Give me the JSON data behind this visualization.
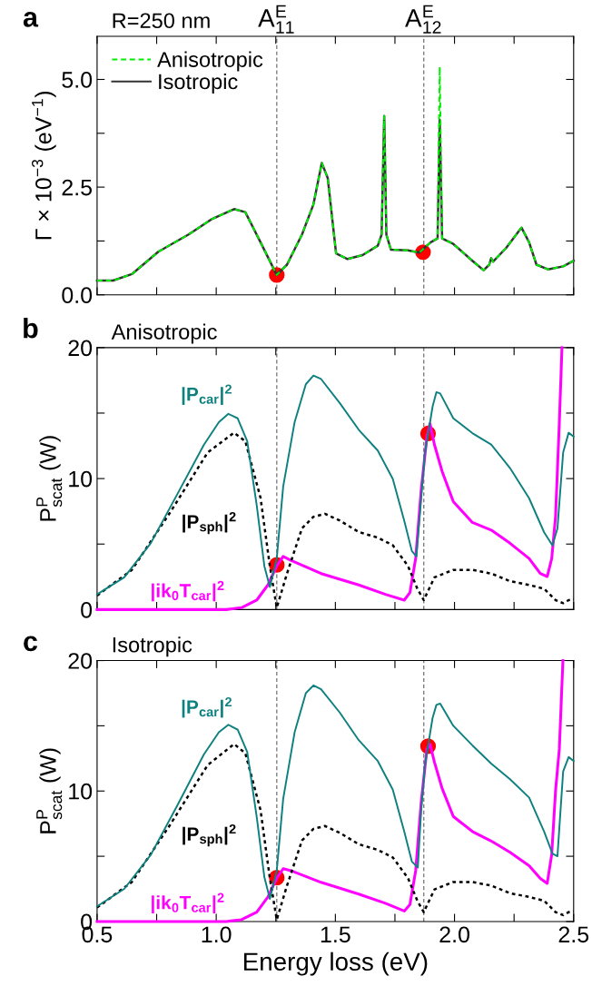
{
  "chart_data": [
    {
      "type": "line",
      "title": "R=250 nm",
      "ylabel": "Γ × 10$^{−3}$ (eV$^{−1}$)",
      "annotations": [
        "a"
      ],
      "xlim": [
        0.5,
        2.5
      ],
      "xticks": [
        0.5,
        {
          "value": 0.75,
          "label": null
        },
        1.0,
        {
          "value": 1.25,
          "label": null
        },
        1.5,
        {
          "value": 1.75,
          "label": null
        },
        2.0,
        {
          "value": 2.25,
          "label": null
        },
        2.5
      ],
      "ylim": [
        0,
        6
      ],
      "yticks": [
        {
          "value": 0,
          "label": "0.0"
        },
        {
          "value": 1.25,
          "label": null
        },
        2.5,
        {
          "value": 3.75,
          "label": null
        },
        {
          "value": 5,
          "label": "5.0"
        }
      ],
      "tick_labels": "y",
      "grid": false,
      "legend": "top left",
      "ref_lines": [
        {
          "axis": "x",
          "value": 1.254,
          "label": "A$^{E}$$_{11}$",
          "color": "#808080",
          "line_style": "dashed"
        },
        {
          "axis": "x",
          "value": 1.871,
          "label": "A$^{E}$$_{12}$",
          "color": "#808080",
          "line_style": "dashed"
        }
      ],
      "series": [
        {
          "name": "Anisotropic",
          "color": "#00ee00",
          "line_style": "dashed",
          "x": [
            0.5,
            0.567,
            0.646,
            0.757,
            0.884,
            0.979,
            1.075,
            1.122,
            1.186,
            1.254,
            1.297,
            1.36,
            1.408,
            1.443,
            1.468,
            1.503,
            1.551,
            1.614,
            1.678,
            1.694,
            1.705,
            1.714,
            1.733,
            1.805,
            1.852,
            1.9,
            1.929,
            1.938,
            1.948,
            1.995,
            2.075,
            2.122,
            2.146,
            2.154,
            2.162,
            2.217,
            2.281,
            2.313,
            2.344,
            2.392,
            2.456,
            2.5
          ],
          "values": [
            0.33,
            0.33,
            0.48,
            1.0,
            1.4,
            1.75,
            1.99,
            1.92,
            1.22,
            0.46,
            0.7,
            1.4,
            2.1,
            3.06,
            2.71,
            0.96,
            0.83,
            0.92,
            1.14,
            1.4,
            4.15,
            1.4,
            1.05,
            1.03,
            0.98,
            1.22,
            1.31,
            5.29,
            1.31,
            1.18,
            0.79,
            0.57,
            0.7,
            0.85,
            0.77,
            1.09,
            1.56,
            1.22,
            0.7,
            0.59,
            0.66,
            0.79
          ]
        },
        {
          "name": "Isotropic",
          "color": "#333333",
          "line_style": "solid",
          "x": [
            0.5,
            0.567,
            0.646,
            0.757,
            0.884,
            0.979,
            1.075,
            1.122,
            1.186,
            1.254,
            1.297,
            1.36,
            1.408,
            1.443,
            1.468,
            1.503,
            1.551,
            1.614,
            1.678,
            1.694,
            1.705,
            1.714,
            1.733,
            1.805,
            1.852,
            1.9,
            1.929,
            1.938,
            1.948,
            1.995,
            2.075,
            2.122,
            2.146,
            2.154,
            2.162,
            2.217,
            2.281,
            2.313,
            2.344,
            2.392,
            2.456,
            2.5
          ],
          "values": [
            0.33,
            0.33,
            0.48,
            1.0,
            1.4,
            1.75,
            1.99,
            1.92,
            1.22,
            0.46,
            0.7,
            1.4,
            2.1,
            3.06,
            2.71,
            0.96,
            0.83,
            0.92,
            1.14,
            1.4,
            4.15,
            1.4,
            1.05,
            1.03,
            0.98,
            1.22,
            1.31,
            4.06,
            1.31,
            1.18,
            0.79,
            0.57,
            0.7,
            0.85,
            0.77,
            1.09,
            1.56,
            1.22,
            0.7,
            0.59,
            0.66,
            0.79
          ]
        },
        {
          "type": "scatter",
          "color": "#ff0000",
          "marker": "circle",
          "x": [
            1.254,
            1.868
          ],
          "values": [
            0.46,
            0.99
          ]
        }
      ]
    },
    {
      "type": "line",
      "title": "Anisotropic",
      "ylabel": "P$^{P}$$_{scat}$ (W)",
      "annotations": [
        "b"
      ],
      "xlim": [
        0.5,
        2.5
      ],
      "xticks": [
        0.5,
        {
          "value": 0.75,
          "label": null
        },
        1.0,
        {
          "value": 1.25,
          "label": null
        },
        1.5,
        {
          "value": 1.75,
          "label": null
        },
        2.0,
        {
          "value": 2.25,
          "label": null
        },
        2.5
      ],
      "ylim": [
        0,
        20
      ],
      "yticks": [
        0,
        {
          "value": 5,
          "label": null
        },
        10,
        {
          "value": 15,
          "label": null
        },
        20
      ],
      "tick_labels": "y",
      "grid": false,
      "legend": false,
      "ref_lines": [
        {
          "axis": "x",
          "value": 1.254,
          "color": "#808080",
          "line_style": "dashed"
        },
        {
          "axis": "x",
          "value": 1.871,
          "color": "#808080",
          "line_style": "dashed"
        }
      ],
      "series": [
        {
          "name": "|P$_{car}$|$^{2}$",
          "color": "#0f8080",
          "line_style": "solid",
          "x": [
            0.5,
            0.614,
            0.725,
            0.837,
            0.948,
            1.011,
            1.051,
            1.09,
            1.13,
            1.17,
            1.202,
            1.225,
            1.254,
            1.281,
            1.329,
            1.376,
            1.408,
            1.44,
            1.519,
            1.598,
            1.678,
            1.741,
            1.789,
            1.821,
            1.84,
            1.86,
            1.876,
            1.892,
            1.908,
            1.924,
            1.94,
            1.995,
            2.075,
            2.154,
            2.233,
            2.313,
            2.376,
            2.411,
            2.432,
            2.456,
            2.479,
            2.5
          ],
          "values": [
            1.16,
            2.46,
            5.06,
            8.82,
            12.57,
            14.31,
            14.94,
            14.6,
            12.86,
            7.95,
            3.32,
            1.73,
            3.9,
            9.39,
            14.31,
            17.2,
            17.86,
            17.6,
            15.75,
            13.73,
            12.14,
            9.97,
            6.79,
            4.47,
            4.05,
            8.5,
            11.99,
            13.7,
            15.5,
            16.6,
            16.5,
            14.6,
            13.47,
            12.6,
            10.8,
            8.5,
            5.9,
            4.9,
            6.2,
            12.0,
            13.5,
            13.2
          ]
        },
        {
          "name": "|P$_{sph}$|$^{2}$",
          "color": "#000000",
          "line_style": "dotted",
          "x": [
            0.5,
            0.646,
            0.805,
            0.964,
            1.075,
            1.122,
            1.186,
            1.225,
            1.254,
            1.297,
            1.36,
            1.408,
            1.456,
            1.519,
            1.598,
            1.678,
            1.741,
            1.805,
            1.844,
            1.871,
            1.916,
            1.995,
            2.075,
            2.154,
            2.233,
            2.313,
            2.376,
            2.424,
            2.456,
            2.479,
            2.5
          ],
          "values": [
            1.07,
            3.03,
            7.37,
            11.99,
            13.5,
            12.86,
            8.53,
            3.32,
            0.14,
            2.75,
            6.21,
            7.08,
            7.31,
            6.79,
            5.92,
            5.49,
            4.91,
            3.32,
            1.59,
            0.72,
            2.46,
            3.03,
            3.03,
            2.75,
            2.17,
            1.88,
            1.59,
            0.72,
            0.49,
            0.72,
            0.78
          ]
        },
        {
          "name": "|ik$_{0}$T$_{car}$|$^{2}$",
          "color": "#ff00ff",
          "line_style": "solid",
          "x": [
            0.5,
            1.043,
            1.106,
            1.17,
            1.217,
            1.254,
            1.281,
            1.313,
            1.44,
            1.598,
            1.71,
            1.789,
            1.813,
            1.837,
            1.86,
            1.884,
            1.897,
            1.916,
            1.948,
            1.995,
            2.075,
            2.154,
            2.233,
            2.313,
            2.36,
            2.389,
            2.408,
            2.424,
            2.44,
            2.451
          ],
          "values": [
            0,
            0,
            0.14,
            0.72,
            1.88,
            3.32,
            4.05,
            3.76,
            2.75,
            1.88,
            1.16,
            0.72,
            1.3,
            3.9,
            9.1,
            13.15,
            14.2,
            12.57,
            10.55,
            8.24,
            6.65,
            6.07,
            5.06,
            3.9,
            2.75,
            2.52,
            3.9,
            7.08,
            14.31,
            20
          ]
        },
        {
          "type": "scatter",
          "color": "#ff0000",
          "marker": "circle",
          "x": [
            1.254,
            1.889
          ],
          "values": [
            3.41,
            13.44
          ]
        }
      ]
    },
    {
      "type": "line",
      "title": "Isotropic",
      "ylabel": "P$^{P}$$_{scat}$ (W)",
      "xlabel": "Energy loss (eV)",
      "annotations": [
        "c"
      ],
      "xlim": [
        0.5,
        2.5
      ],
      "ylim": [
        0,
        20
      ],
      "yticks": [
        0,
        {
          "value": 5,
          "label": null
        },
        10,
        {
          "value": 15,
          "label": null
        },
        20
      ],
      "xticks": [
        0.5,
        {
          "value": 0.75,
          "label": null
        },
        {
          "value": 1,
          "label": "1.0"
        },
        {
          "value": 1.25,
          "label": null
        },
        1.5,
        {
          "value": 1.75,
          "label": null
        },
        {
          "value": 2,
          "label": "2.0"
        },
        {
          "value": 2.25,
          "label": null
        },
        2.5
      ],
      "grid": false,
      "legend": false,
      "ref_lines": [
        {
          "axis": "x",
          "value": 1.254,
          "color": "#808080",
          "line_style": "dashed"
        },
        {
          "axis": "x",
          "value": 1.871,
          "color": "#808080",
          "line_style": "dashed"
        }
      ],
      "series": [
        {
          "name": "|P$_{car}$|$^{2}$",
          "color": "#0f8080",
          "line_style": "solid",
          "x": [
            0.5,
            0.614,
            0.725,
            0.837,
            0.948,
            1.011,
            1.051,
            1.09,
            1.13,
            1.17,
            1.202,
            1.225,
            1.254,
            1.281,
            1.329,
            1.376,
            1.408,
            1.44,
            1.519,
            1.598,
            1.678,
            1.741,
            1.789,
            1.821,
            1.846,
            1.86,
            1.876,
            1.892,
            1.908,
            1.924,
            1.94,
            1.995,
            2.075,
            2.154,
            2.233,
            2.313,
            2.376,
            2.411,
            2.432,
            2.456,
            2.479,
            2.5
          ],
          "values": [
            1.16,
            2.5,
            5.1,
            8.9,
            12.8,
            14.5,
            15.08,
            14.7,
            13.0,
            8.0,
            3.4,
            1.73,
            3.9,
            9.4,
            14.5,
            17.5,
            18.09,
            17.8,
            16.0,
            13.9,
            12.3,
            10.1,
            6.9,
            4.6,
            4.14,
            8.5,
            12.0,
            13.8,
            15.6,
            16.6,
            16.7,
            15.0,
            13.5,
            12.1,
            10.9,
            9.5,
            6.9,
            5.2,
            5.0,
            11.5,
            12.6,
            12.3
          ]
        },
        {
          "name": "|P$_{sph}$|$^{2}$",
          "color": "#000000",
          "line_style": "dotted",
          "x": [
            0.5,
            0.646,
            0.805,
            0.964,
            1.075,
            1.122,
            1.186,
            1.225,
            1.254,
            1.297,
            1.36,
            1.408,
            1.456,
            1.519,
            1.598,
            1.678,
            1.741,
            1.805,
            1.844,
            1.871,
            1.916,
            1.995,
            2.075,
            2.154,
            2.233,
            2.313,
            2.376,
            2.424,
            2.456,
            2.479,
            2.5
          ],
          "values": [
            1.07,
            3.03,
            7.37,
            11.99,
            13.6,
            12.9,
            8.53,
            3.32,
            0.14,
            2.75,
            6.21,
            7.1,
            7.32,
            6.79,
            5.92,
            5.49,
            4.91,
            3.32,
            1.59,
            0.72,
            2.46,
            3.03,
            3.03,
            2.75,
            2.17,
            1.88,
            1.59,
            0.72,
            0.49,
            0.72,
            0.78
          ]
        },
        {
          "name": "|ik$_{0}$T$_{car}$|$^{2}$",
          "color": "#ff00ff",
          "line_style": "solid",
          "x": [
            0.5,
            1.043,
            1.106,
            1.17,
            1.217,
            1.254,
            1.281,
            1.313,
            1.44,
            1.598,
            1.71,
            1.789,
            1.813,
            1.837,
            1.86,
            1.884,
            1.897,
            1.916,
            1.948,
            1.995,
            2.075,
            2.154,
            2.233,
            2.313,
            2.36,
            2.389,
            2.408,
            2.424,
            2.44,
            2.455
          ],
          "values": [
            0,
            0,
            0.14,
            0.72,
            1.88,
            3.32,
            4.05,
            3.9,
            3.0,
            2.1,
            1.4,
            0.8,
            1.3,
            3.9,
            9.1,
            13.2,
            13.6,
            12.2,
            10.2,
            8.05,
            6.9,
            6.17,
            5.3,
            4.28,
            3.3,
            2.92,
            5.15,
            10.0,
            13.26,
            20
          ]
        },
        {
          "type": "scatter",
          "color": "#ff0000",
          "marker": "circle",
          "x": [
            1.254,
            1.889
          ],
          "values": [
            3.36,
            13.43
          ]
        }
      ]
    }
  ]
}
